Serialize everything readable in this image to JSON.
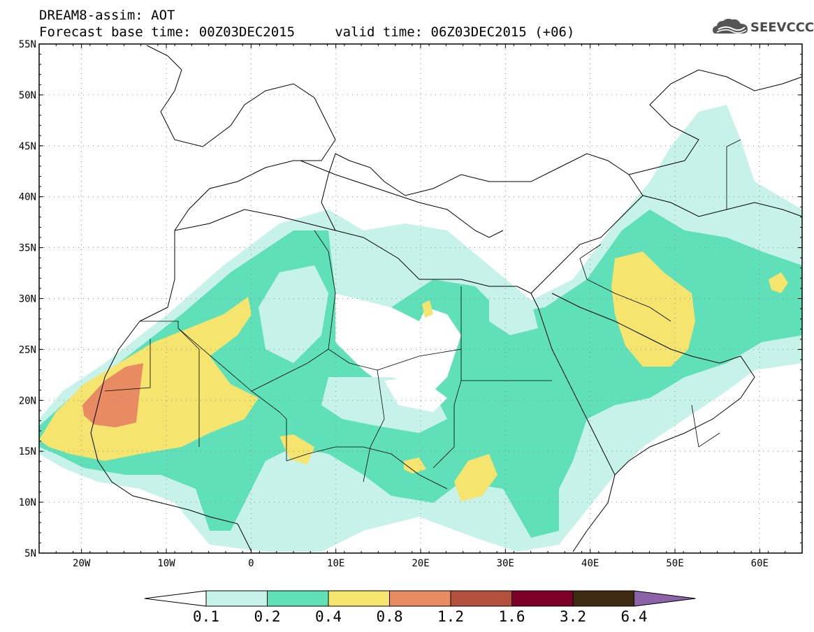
{
  "header": {
    "title_line1": "DREAM8-assim: AOT",
    "title_line2": "Forecast base time: 00Z03DEC2015     valid time: 06Z03DEC2015 (+06)",
    "logo_text": "SEEVCCC",
    "logo_icon": "cloud-logo-icon"
  },
  "map": {
    "lat_axis": {
      "min": 5,
      "max": 55,
      "step": 5,
      "labels": [
        "55N",
        "50N",
        "45N",
        "40N",
        "35N",
        "30N",
        "25N",
        "20N",
        "15N",
        "10N",
        "5N"
      ]
    },
    "lon_axis": {
      "min": -25,
      "max": 65,
      "ticks": [
        -20,
        -10,
        0,
        10,
        20,
        30,
        40,
        50,
        60
      ],
      "labels": [
        "20W",
        "10W",
        "0",
        "10E",
        "20E",
        "30E",
        "40E",
        "50E",
        "60E"
      ]
    },
    "grid": "dotted"
  },
  "colorbar": {
    "levels": [
      "0.1",
      "0.2",
      "0.4",
      "0.8",
      "1.2",
      "1.6",
      "3.2",
      "6.4"
    ],
    "colors": [
      "#ffffff",
      "#c6f2ea",
      "#5fe0b8",
      "#f5e46e",
      "#e88b62",
      "#b4503e",
      "#7d0029",
      "#3e2a12",
      "#8c62a8"
    ]
  }
}
